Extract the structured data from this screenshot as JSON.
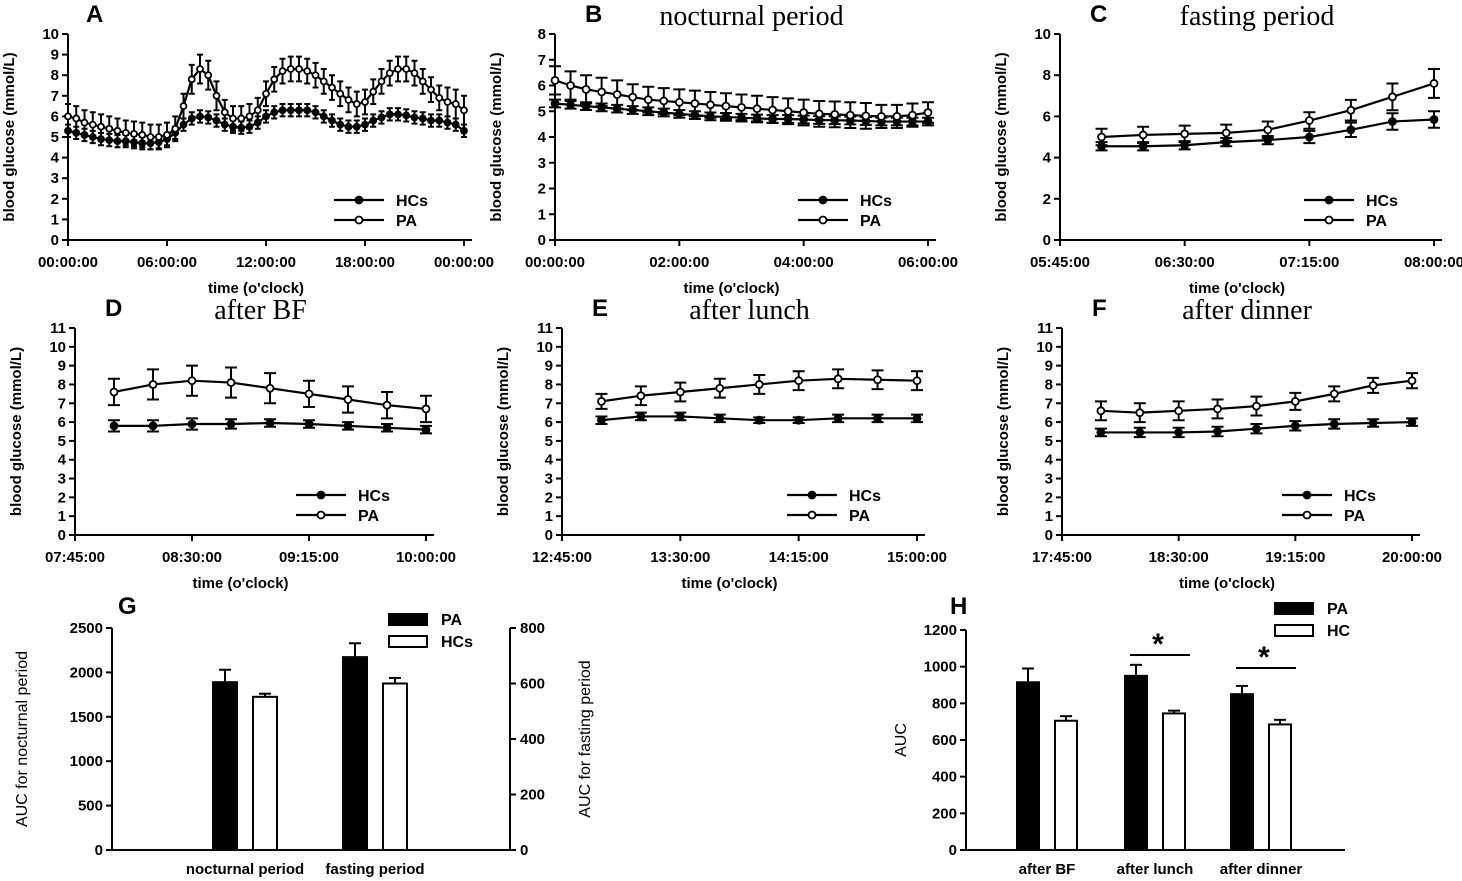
{
  "chart_data": [
    {
      "panel": "A",
      "type": "line",
      "title": "",
      "xlabel": "time (o'clock)",
      "ylabel": "blood glucose (mmol/L)",
      "ylim": [
        0,
        10
      ],
      "yticks": [
        0,
        1,
        2,
        3,
        4,
        5,
        6,
        7,
        8,
        9,
        10
      ],
      "xlim": [
        0,
        24
      ],
      "xtick_values": [
        0,
        6,
        12,
        18,
        24
      ],
      "xtick_labels": [
        "00:00:00",
        "06:00:00",
        "12:00:00",
        "18:00:00",
        "00:00:00"
      ],
      "x": [
        0,
        0.5,
        1,
        1.5,
        2,
        2.5,
        3,
        3.5,
        4,
        4.5,
        5,
        5.5,
        6,
        6.5,
        7,
        7.5,
        8,
        8.5,
        9,
        9.5,
        10,
        10.5,
        11,
        11.5,
        12,
        12.5,
        13,
        13.5,
        14,
        14.5,
        15,
        15.5,
        16,
        16.5,
        17,
        17.5,
        18,
        18.5,
        19,
        19.5,
        20,
        20.5,
        21,
        21.5,
        22,
        22.5,
        23,
        23.5,
        24
      ],
      "dense_markers": true,
      "legend": [
        "HCs",
        "PA"
      ],
      "series": [
        {
          "name": "HCs",
          "marker": "filled",
          "values": [
            5.3,
            5.2,
            5.1,
            5.0,
            4.9,
            4.85,
            4.8,
            4.8,
            4.75,
            4.7,
            4.7,
            4.75,
            4.9,
            5.2,
            5.6,
            5.9,
            6.0,
            5.95,
            5.8,
            5.6,
            5.5,
            5.45,
            5.5,
            5.7,
            6.0,
            6.2,
            6.3,
            6.3,
            6.3,
            6.3,
            6.2,
            6.0,
            5.8,
            5.6,
            5.5,
            5.5,
            5.6,
            5.8,
            5.95,
            6.1,
            6.1,
            6.05,
            5.95,
            5.9,
            5.8,
            5.8,
            5.7,
            5.6,
            5.3
          ],
          "errors": [
            0.3,
            0.3,
            0.3,
            0.3,
            0.3,
            0.3,
            0.3,
            0.3,
            0.3,
            0.3,
            0.3,
            0.3,
            0.3,
            0.3,
            0.3,
            0.3,
            0.3,
            0.3,
            0.3,
            0.3,
            0.3,
            0.3,
            0.3,
            0.3,
            0.3,
            0.3,
            0.3,
            0.3,
            0.3,
            0.3,
            0.3,
            0.3,
            0.3,
            0.3,
            0.3,
            0.3,
            0.3,
            0.3,
            0.3,
            0.3,
            0.3,
            0.3,
            0.3,
            0.3,
            0.3,
            0.3,
            0.3,
            0.3,
            0.3
          ]
        },
        {
          "name": "PA",
          "marker": "open",
          "values": [
            6.0,
            5.9,
            5.7,
            5.6,
            5.5,
            5.4,
            5.3,
            5.2,
            5.15,
            5.1,
            5.0,
            5.0,
            5.1,
            5.4,
            6.5,
            7.8,
            8.3,
            8.0,
            7.0,
            6.2,
            5.9,
            5.9,
            6.0,
            6.3,
            7.1,
            7.8,
            8.2,
            8.3,
            8.3,
            8.2,
            8.0,
            7.7,
            7.4,
            7.1,
            6.8,
            6.6,
            6.7,
            7.2,
            7.7,
            8.1,
            8.3,
            8.3,
            8.1,
            7.7,
            7.3,
            6.9,
            6.7,
            6.6,
            6.3
          ],
          "errors": [
            0.6,
            0.6,
            0.6,
            0.6,
            0.6,
            0.6,
            0.6,
            0.6,
            0.6,
            0.6,
            0.6,
            0.6,
            0.6,
            0.6,
            0.6,
            0.7,
            0.7,
            0.7,
            0.7,
            0.6,
            0.6,
            0.6,
            0.6,
            0.6,
            0.6,
            0.6,
            0.6,
            0.6,
            0.6,
            0.6,
            0.6,
            0.6,
            0.6,
            0.6,
            0.6,
            0.6,
            0.6,
            0.6,
            0.6,
            0.6,
            0.6,
            0.6,
            0.6,
            0.6,
            0.6,
            0.6,
            0.7,
            0.7,
            0.7
          ]
        }
      ]
    },
    {
      "panel": "B",
      "type": "line",
      "title": "nocturnal period",
      "xlabel": "time (o'clock)",
      "ylabel": "blood glucose (mmol/L)",
      "ylim": [
        0,
        8
      ],
      "yticks": [
        0,
        1,
        2,
        3,
        4,
        5,
        6,
        7,
        8
      ],
      "xlim": [
        0,
        6
      ],
      "xtick_values": [
        0,
        2,
        4,
        6
      ],
      "xtick_labels": [
        "00:00:00",
        "02:00:00",
        "04:00:00",
        "06:00:00"
      ],
      "x": [
        0,
        0.25,
        0.5,
        0.75,
        1,
        1.25,
        1.5,
        1.75,
        2,
        2.25,
        2.5,
        2.75,
        3,
        3.25,
        3.5,
        3.75,
        4,
        4.25,
        4.5,
        4.75,
        5,
        5.25,
        5.5,
        5.75,
        6
      ],
      "legend": [
        "HCs",
        "PA"
      ],
      "series": [
        {
          "name": "HCs",
          "marker": "filled",
          "values": [
            5.3,
            5.25,
            5.2,
            5.15,
            5.1,
            5.05,
            5.0,
            4.95,
            4.9,
            4.85,
            4.8,
            4.78,
            4.75,
            4.72,
            4.7,
            4.7,
            4.68,
            4.66,
            4.65,
            4.64,
            4.62,
            4.6,
            4.6,
            4.6,
            4.6
          ],
          "errors": [
            0.15,
            0.15,
            0.15,
            0.15,
            0.15,
            0.15,
            0.15,
            0.15,
            0.15,
            0.15,
            0.15,
            0.15,
            0.15,
            0.15,
            0.15,
            0.15,
            0.15,
            0.15,
            0.15,
            0.15,
            0.15,
            0.15,
            0.15,
            0.15,
            0.15
          ]
        },
        {
          "name": "PA",
          "marker": "open",
          "values": [
            6.2,
            6.0,
            5.85,
            5.75,
            5.65,
            5.55,
            5.45,
            5.4,
            5.35,
            5.3,
            5.25,
            5.2,
            5.15,
            5.1,
            5.05,
            5.0,
            4.95,
            4.9,
            4.88,
            4.85,
            4.82,
            4.8,
            4.8,
            4.85,
            4.95
          ],
          "errors": [
            0.55,
            0.55,
            0.55,
            0.55,
            0.55,
            0.5,
            0.5,
            0.5,
            0.5,
            0.5,
            0.5,
            0.5,
            0.5,
            0.5,
            0.5,
            0.5,
            0.5,
            0.5,
            0.5,
            0.5,
            0.5,
            0.45,
            0.45,
            0.45,
            0.4
          ]
        }
      ]
    },
    {
      "panel": "C",
      "type": "line",
      "title": "fasting period",
      "xlabel": "time (o'clock)",
      "ylabel": "blood glucose (mmol/L)",
      "ylim": [
        0,
        10
      ],
      "yticks": [
        0,
        2,
        4,
        6,
        8,
        10
      ],
      "xlim": [
        345,
        480
      ],
      "xtick_values": [
        345,
        390,
        435,
        480
      ],
      "xtick_labels": [
        "05:45:00",
        "06:30:00",
        "07:15:00",
        "08:00:00"
      ],
      "x": [
        360,
        375,
        390,
        405,
        420,
        435,
        450,
        465,
        480
      ],
      "legend": [
        "HCs",
        "PA"
      ],
      "series": [
        {
          "name": "HCs",
          "marker": "filled",
          "values": [
            4.55,
            4.55,
            4.6,
            4.75,
            4.85,
            5.0,
            5.35,
            5.75,
            5.85
          ],
          "errors": [
            0.2,
            0.2,
            0.2,
            0.2,
            0.2,
            0.3,
            0.35,
            0.4,
            0.4
          ]
        },
        {
          "name": "PA",
          "marker": "open",
          "values": [
            5.0,
            5.1,
            5.15,
            5.2,
            5.35,
            5.8,
            6.3,
            6.95,
            7.6
          ],
          "errors": [
            0.4,
            0.4,
            0.4,
            0.4,
            0.4,
            0.4,
            0.5,
            0.65,
            0.7
          ]
        }
      ]
    },
    {
      "panel": "D",
      "type": "line",
      "title": "after BF",
      "xlabel": "time (o'clock)",
      "ylabel": "blood glucose (mmol/L)",
      "ylim": [
        0,
        11
      ],
      "yticks": [
        0,
        1,
        2,
        3,
        4,
        5,
        6,
        7,
        8,
        9,
        10,
        11
      ],
      "xlim": [
        465,
        600
      ],
      "xtick_values": [
        465,
        510,
        555,
        600
      ],
      "xtick_labels": [
        "07:45:00",
        "08:30:00",
        "09:15:00",
        "10:00:00"
      ],
      "x": [
        480,
        495,
        510,
        525,
        540,
        555,
        570,
        585,
        600
      ],
      "legend": [
        "HCs",
        "PA"
      ],
      "series": [
        {
          "name": "HCs",
          "marker": "filled",
          "values": [
            5.8,
            5.8,
            5.9,
            5.9,
            5.95,
            5.9,
            5.8,
            5.7,
            5.6
          ],
          "errors": [
            0.3,
            0.3,
            0.3,
            0.25,
            0.2,
            0.2,
            0.2,
            0.2,
            0.2
          ]
        },
        {
          "name": "PA",
          "marker": "open",
          "values": [
            7.6,
            8.0,
            8.2,
            8.1,
            7.8,
            7.5,
            7.2,
            6.9,
            6.7
          ],
          "errors": [
            0.7,
            0.8,
            0.8,
            0.8,
            0.8,
            0.7,
            0.7,
            0.7,
            0.7
          ]
        }
      ]
    },
    {
      "panel": "E",
      "type": "line",
      "title": "after lunch",
      "xlabel": "time (o'clock)",
      "ylabel": "blood glucose (mmol/L)",
      "ylim": [
        0,
        11
      ],
      "yticks": [
        0,
        1,
        2,
        3,
        4,
        5,
        6,
        7,
        8,
        9,
        10,
        11
      ],
      "xlim": [
        765,
        900
      ],
      "xtick_values": [
        765,
        810,
        855,
        900
      ],
      "xtick_labels": [
        "12:45:00",
        "13:30:00",
        "14:15:00",
        "15:00:00"
      ],
      "x": [
        780,
        795,
        810,
        825,
        840,
        855,
        870,
        885,
        900
      ],
      "legend": [
        "HCs",
        "PA"
      ],
      "series": [
        {
          "name": "HCs",
          "marker": "filled",
          "values": [
            6.1,
            6.3,
            6.3,
            6.2,
            6.1,
            6.1,
            6.2,
            6.2,
            6.2
          ],
          "errors": [
            0.2,
            0.2,
            0.2,
            0.2,
            0.15,
            0.15,
            0.2,
            0.2,
            0.2
          ]
        },
        {
          "name": "PA",
          "marker": "open",
          "values": [
            7.1,
            7.4,
            7.6,
            7.8,
            8.0,
            8.2,
            8.3,
            8.25,
            8.2
          ],
          "errors": [
            0.4,
            0.5,
            0.5,
            0.5,
            0.5,
            0.5,
            0.5,
            0.5,
            0.5
          ]
        }
      ]
    },
    {
      "panel": "F",
      "type": "line",
      "title": "after dinner",
      "xlabel": "time (o'clock)",
      "ylabel": "blood glucose (mmol/L)",
      "ylim": [
        0,
        11
      ],
      "yticks": [
        0,
        1,
        2,
        3,
        4,
        5,
        6,
        7,
        8,
        9,
        10,
        11
      ],
      "xlim": [
        1065,
        1200
      ],
      "xtick_values": [
        1065,
        1110,
        1155,
        1200
      ],
      "xtick_labels": [
        "17:45:00",
        "18:30:00",
        "19:15:00",
        "20:00:00"
      ],
      "x": [
        1080,
        1095,
        1110,
        1125,
        1140,
        1155,
        1170,
        1185,
        1200
      ],
      "legend": [
        "HCs",
        "PA"
      ],
      "series": [
        {
          "name": "HCs",
          "marker": "filled",
          "values": [
            5.45,
            5.45,
            5.45,
            5.5,
            5.65,
            5.8,
            5.9,
            5.95,
            6.0
          ],
          "errors": [
            0.2,
            0.25,
            0.25,
            0.25,
            0.25,
            0.25,
            0.25,
            0.2,
            0.2
          ]
        },
        {
          "name": "PA",
          "marker": "open",
          "values": [
            6.6,
            6.5,
            6.6,
            6.7,
            6.85,
            7.1,
            7.5,
            7.95,
            8.2
          ],
          "errors": [
            0.5,
            0.5,
            0.5,
            0.5,
            0.5,
            0.45,
            0.4,
            0.4,
            0.4
          ]
        }
      ]
    },
    {
      "panel": "G",
      "type": "bar",
      "title": "",
      "categories": [
        "nocturnal period",
        "fasting period"
      ],
      "ylabel": "AUC for nocturnal period",
      "ylim": [
        0,
        2500
      ],
      "yticks": [
        0,
        500,
        1000,
        1500,
        2000,
        2500
      ],
      "y2label": "AUC for fasting period",
      "y2lim": [
        0,
        800
      ],
      "y2ticks": [
        0,
        200,
        400,
        600,
        800
      ],
      "legend": [
        "PA",
        "HCs"
      ],
      "series": [
        {
          "name": "PA",
          "fill": "#000000",
          "values": [
            1890,
            695
          ],
          "errors": [
            140,
            50
          ],
          "axis": [
            "left",
            "right"
          ]
        },
        {
          "name": "HCs",
          "fill": "#ffffff",
          "values": [
            1725,
            600
          ],
          "errors": [
            35,
            20
          ],
          "axis": [
            "left",
            "right"
          ]
        }
      ]
    },
    {
      "panel": "H",
      "type": "bar",
      "title": "",
      "categories": [
        "after BF",
        "after lunch",
        "after dinner"
      ],
      "ylabel": "AUC",
      "ylim": [
        0,
        1200
      ],
      "yticks": [
        0,
        200,
        400,
        600,
        800,
        1000,
        1200
      ],
      "legend": [
        "PA",
        "HC"
      ],
      "significance": [
        {
          "category": "after lunch",
          "label": "*"
        },
        {
          "category": "after dinner",
          "label": "*"
        }
      ],
      "series": [
        {
          "name": "PA",
          "fill": "#000000",
          "values": [
            915,
            950,
            850
          ],
          "errors": [
            75,
            60,
            45
          ]
        },
        {
          "name": "HC",
          "fill": "#ffffff",
          "values": [
            705,
            745,
            685
          ],
          "errors": [
            25,
            15,
            25
          ]
        }
      ]
    }
  ]
}
